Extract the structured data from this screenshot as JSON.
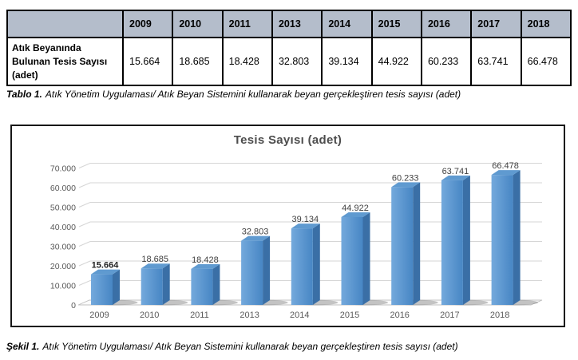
{
  "table": {
    "header_bg": "#B4BDCB",
    "corner_label": "",
    "row_header": "Atık Beyanında Bulunan Tesis Sayısı (adet)",
    "years": [
      "2009",
      "2010",
      "2011",
      "2013",
      "2014",
      "2015",
      "2016",
      "2017",
      "2018"
    ],
    "values": [
      "15.664",
      "18.685",
      "18.428",
      "32.803",
      "39.134",
      "44.922",
      "60.233",
      "63.741",
      "66.478"
    ]
  },
  "captions": {
    "table_prefix": "Tablo 1.",
    "table_text": "Atık Yönetim Uygulaması/ Atık Beyan Sistemini kullanarak beyan gerçekleştiren tesis sayısı (adet)",
    "figure_prefix": "Şekil 1.",
    "figure_text": "Atık Yönetim Uygulaması/ Atık Beyan Sistemini kullanarak beyan gerçekleştiren tesis sayısı (adet)"
  },
  "chart_data": {
    "type": "bar",
    "style": "3d-column",
    "title": "Tesis Sayısı (adet)",
    "categories": [
      "2009",
      "2010",
      "2011",
      "2013",
      "2014",
      "2015",
      "2016",
      "2017",
      "2018"
    ],
    "values": [
      15664,
      18685,
      18428,
      32803,
      39134,
      44922,
      60233,
      63741,
      66478
    ],
    "value_labels": [
      "15.664",
      "18.685",
      "18.428",
      "32.803",
      "39.134",
      "44.922",
      "60.233",
      "63.741",
      "66.478"
    ],
    "xlabel": "",
    "ylabel": "",
    "ylim": [
      0,
      70000
    ],
    "ytick_step": 10000,
    "ytick_labels": [
      "0",
      "10.000",
      "20.000",
      "30.000",
      "40.000",
      "50.000",
      "60.000",
      "70.000"
    ],
    "grid": true,
    "legend": "none",
    "colors": {
      "bar_front_light": "#74A9DC",
      "bar_front_dark": "#4786C4",
      "bar_top": "#5F9AD0",
      "bar_side": "#3A6FA6",
      "gridline": "#D6D6D6",
      "floor_fill": "#FBFBFB",
      "floor_stroke": "#C0C0C0",
      "shadow": "#7F7F7F",
      "axis_text": "#595959",
      "label_text": "#3F3F3F",
      "first_label_text": "#1F1F1F"
    }
  }
}
